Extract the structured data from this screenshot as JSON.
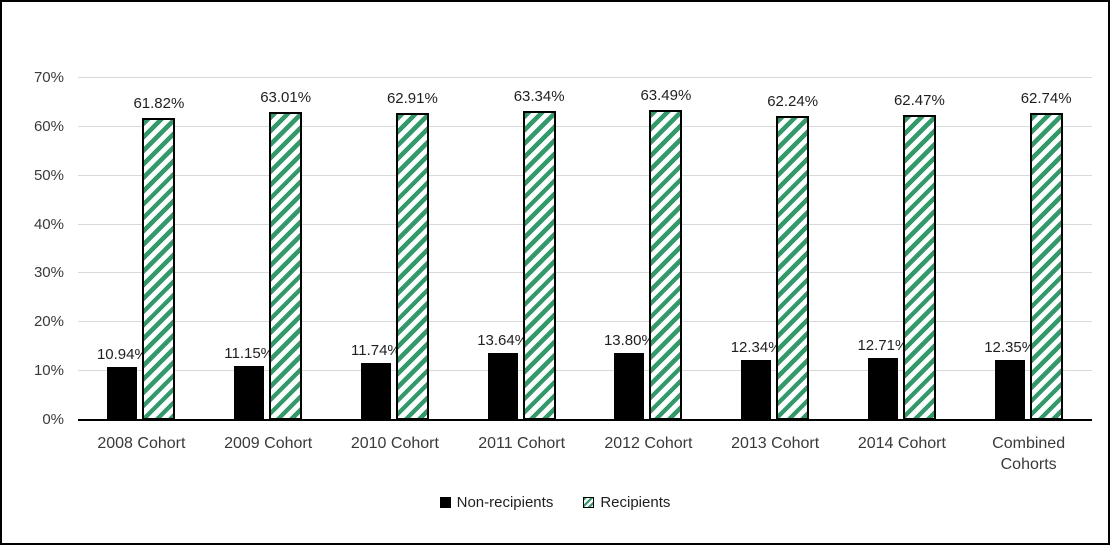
{
  "chart_data": {
    "type": "bar",
    "title": "",
    "xlabel": "",
    "ylabel": "",
    "categories": [
      "2008 Cohort",
      "2009 Cohort",
      "2010 Cohort",
      "2011 Cohort",
      "2012 Cohort",
      "2013 Cohort",
      "2014 Cohort",
      "Combined\nCohorts"
    ],
    "series": [
      {
        "name": "Non-recipients",
        "style": "solid",
        "color": "#000000",
        "values": [
          10.94,
          11.15,
          11.74,
          13.64,
          13.8,
          12.34,
          12.71,
          12.35
        ]
      },
      {
        "name": "Recipients",
        "style": "hatched",
        "color": "#2E9B68",
        "values": [
          61.82,
          63.01,
          62.91,
          63.34,
          63.49,
          62.24,
          62.47,
          62.74
        ]
      }
    ],
    "data_label_decimals": 2,
    "value_suffix": "%",
    "ylim": [
      0,
      70
    ],
    "yticks": [
      0,
      10,
      20,
      30,
      40,
      50,
      60,
      70
    ],
    "grid": true,
    "legend_position": "bottom",
    "colors": {
      "gridline": "#D9D9D9",
      "axis": "#000000",
      "hatch_background": "#FFFFFF",
      "frame_border": "#000000"
    }
  }
}
